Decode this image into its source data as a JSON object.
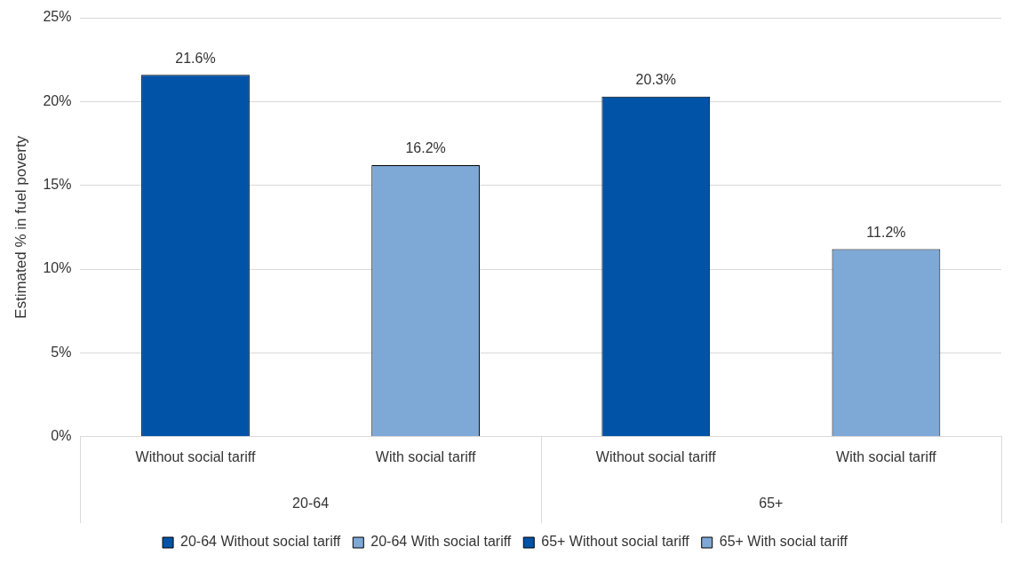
{
  "chart_data": {
    "type": "bar",
    "ylabel": "Estimated % in fuel poverty",
    "categories": [
      "Without social tariff",
      "With social tariff",
      "Without social tariff",
      "With social tariff"
    ],
    "annotations": [
      "20-64",
      "65+"
    ],
    "series": [
      {
        "name": "20-64 Without social tariff",
        "color": "#0053a6",
        "values": [
          21.6,
          null,
          null,
          null
        ],
        "value_labels": [
          "21.6%",
          null,
          null,
          null
        ]
      },
      {
        "name": "20-64 With social tariff",
        "color": "#7ea9d6",
        "values": [
          null,
          16.2,
          null,
          null
        ],
        "value_labels": [
          null,
          "16.2%",
          null,
          null
        ]
      },
      {
        "name": "65+ Without social tariff",
        "color": "#0053a6",
        "values": [
          null,
          null,
          20.3,
          null
        ],
        "value_labels": [
          null,
          null,
          "20.3%",
          null
        ]
      },
      {
        "name": "65+ With social tariff",
        "color": "#7ea9d6",
        "values": [
          null,
          null,
          null,
          11.2
        ],
        "value_labels": [
          null,
          null,
          null,
          "11.2%"
        ]
      }
    ],
    "ylim": [
      0,
      25
    ],
    "yticks": [
      {
        "value": 0,
        "label": "0%"
      },
      {
        "value": 5,
        "label": "5%"
      },
      {
        "value": 10,
        "label": "10%"
      },
      {
        "value": 15,
        "label": "15%"
      },
      {
        "value": 20,
        "label": "20%"
      },
      {
        "value": 25,
        "label": "25%"
      }
    ],
    "grid": "y",
    "legend": "bottom"
  }
}
